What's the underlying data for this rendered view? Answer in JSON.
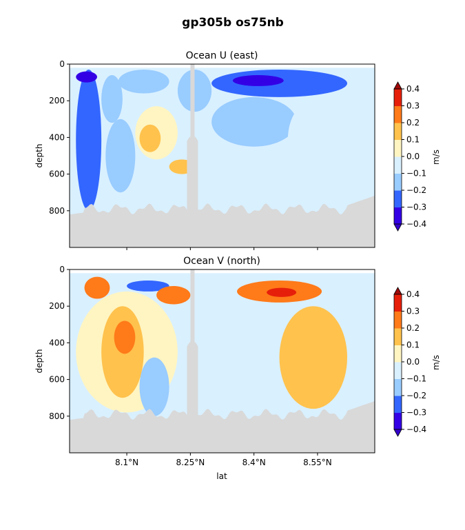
{
  "figure": {
    "title": "gp305b os75nb"
  },
  "chart_data": [
    {
      "type": "heatmap",
      "title": "Ocean U (east)",
      "ylabel": "depth",
      "xlabel": "",
      "ylim": [
        0,
        1000
      ],
      "yticks": [
        "0",
        "200",
        "400",
        "600",
        "800"
      ],
      "ytick_values": [
        0,
        200,
        400,
        600,
        800
      ],
      "xlim": [
        7.965,
        8.685
      ],
      "xtick_values": [
        8.1,
        8.25,
        8.4,
        8.55
      ],
      "colorbar": {
        "label": "m/s",
        "levels": [
          -0.4,
          -0.3,
          -0.2,
          -0.1,
          0.0,
          0.1,
          0.2,
          0.3,
          0.4
        ],
        "ticks": [
          "0.4",
          "0.3",
          "0.2",
          "0.1",
          "0.0",
          "−0.1",
          "−0.2",
          "−0.3",
          "−0.4"
        ],
        "colors": [
          "#3300e6",
          "#3366ff",
          "#99ccff",
          "#d9f0ff",
          "#fff5c2",
          "#ffc24d",
          "#ff7a19",
          "#e61f0a"
        ],
        "under_color": "#3300cc",
        "over_color": "#a00a0a"
      },
      "notes": "Regions of eastward velocity by latitude and depth",
      "regions": [
        {
          "lat": [
            7.98,
            8.04
          ],
          "depth": [
            30,
            800
          ],
          "value": -0.25
        },
        {
          "lat": [
            7.98,
            8.03
          ],
          "depth": [
            40,
            100
          ],
          "value": -0.35
        },
        {
          "lat": [
            8.04,
            8.09
          ],
          "depth": [
            60,
            320
          ],
          "value": -0.2
        },
        {
          "lat": [
            8.05,
            8.12
          ],
          "depth": [
            300,
            700
          ],
          "value": -0.15
        },
        {
          "lat": [
            8.08,
            8.2
          ],
          "depth": [
            30,
            160
          ],
          "value": -0.15
        },
        {
          "lat": [
            8.12,
            8.22
          ],
          "depth": [
            230,
            520
          ],
          "value": 0.08
        },
        {
          "lat": [
            8.13,
            8.18
          ],
          "depth": [
            330,
            480
          ],
          "value": 0.15
        },
        {
          "lat": [
            8.22,
            8.3
          ],
          "depth": [
            30,
            260
          ],
          "value": -0.15
        },
        {
          "lat": [
            8.3,
            8.62
          ],
          "depth": [
            30,
            180
          ],
          "value": -0.25
        },
        {
          "lat": [
            8.35,
            8.47
          ],
          "depth": [
            60,
            120
          ],
          "value": -0.35
        },
        {
          "lat": [
            8.3,
            8.5
          ],
          "depth": [
            180,
            450
          ],
          "value": -0.15
        },
        {
          "lat": [
            8.48,
            8.6
          ],
          "depth": [
            200,
            620
          ],
          "value": -0.1
        },
        {
          "lat": [
            8.2,
            8.26
          ],
          "depth": [
            520,
            600
          ],
          "value": 0.12
        }
      ]
    },
    {
      "type": "heatmap",
      "title": "Ocean V (north)",
      "ylabel": "depth",
      "xlabel": "lat",
      "ylim": [
        0,
        1000
      ],
      "yticks": [
        "0",
        "200",
        "400",
        "600",
        "800"
      ],
      "ytick_values": [
        0,
        200,
        400,
        600,
        800
      ],
      "xlim": [
        7.965,
        8.685
      ],
      "xticks": [
        "8.1°N",
        "8.25°N",
        "8.4°N",
        "8.55°N"
      ],
      "xtick_values": [
        8.1,
        8.25,
        8.4,
        8.55
      ],
      "colorbar": {
        "label": "m/s",
        "levels": [
          -0.4,
          -0.3,
          -0.2,
          -0.1,
          0.0,
          0.1,
          0.2,
          0.3,
          0.4
        ],
        "ticks": [
          "0.4",
          "0.3",
          "0.2",
          "0.1",
          "0.0",
          "−0.1",
          "−0.2",
          "−0.3",
          "−0.4"
        ],
        "colors": [
          "#3300e6",
          "#3366ff",
          "#99ccff",
          "#d9f0ff",
          "#fff5c2",
          "#ffc24d",
          "#ff7a19",
          "#e61f0a"
        ],
        "under_color": "#3300cc",
        "over_color": "#a00a0a"
      },
      "notes": "Regions of northward velocity by latitude and depth",
      "regions": [
        {
          "lat": [
            7.98,
            8.22
          ],
          "depth": [
            120,
            780
          ],
          "value": 0.05
        },
        {
          "lat": [
            8.0,
            8.06
          ],
          "depth": [
            40,
            160
          ],
          "value": 0.2
        },
        {
          "lat": [
            8.04,
            8.14
          ],
          "depth": [
            200,
            700
          ],
          "value": 0.15
        },
        {
          "lat": [
            8.07,
            8.12
          ],
          "depth": [
            280,
            460
          ],
          "value": 0.25
        },
        {
          "lat": [
            8.1,
            8.2
          ],
          "depth": [
            60,
            120
          ],
          "value": -0.25
        },
        {
          "lat": [
            8.17,
            8.25
          ],
          "depth": [
            90,
            190
          ],
          "value": 0.25
        },
        {
          "lat": [
            8.13,
            8.2
          ],
          "depth": [
            480,
            800
          ],
          "value": -0.2
        },
        {
          "lat": [
            8.3,
            8.46
          ],
          "depth": [
            200,
            780
          ],
          "value": -0.05
        },
        {
          "lat": [
            8.36,
            8.56
          ],
          "depth": [
            60,
            180
          ],
          "value": 0.2
        },
        {
          "lat": [
            8.43,
            8.5
          ],
          "depth": [
            100,
            150
          ],
          "value": 0.35
        },
        {
          "lat": [
            8.46,
            8.62
          ],
          "depth": [
            200,
            760
          ],
          "value": 0.15
        },
        {
          "lat": [
            8.5,
            8.6
          ],
          "depth": [
            280,
            600
          ],
          "value": 0.18
        }
      ]
    }
  ]
}
